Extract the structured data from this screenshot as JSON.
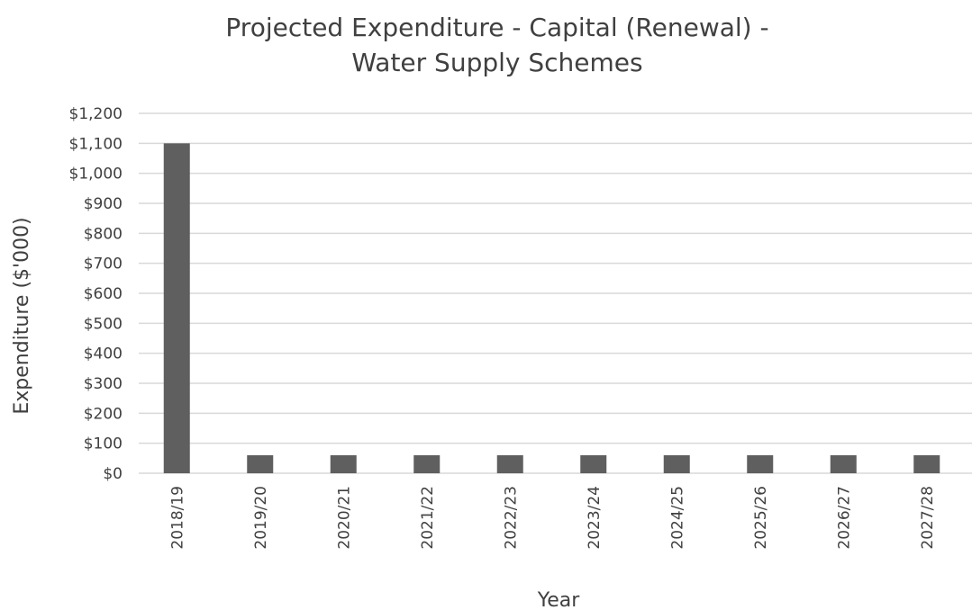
{
  "chart_data": {
    "type": "bar",
    "title_lines": [
      "Projected Expenditure - Capital (Renewal) -",
      "Water Supply Schemes"
    ],
    "xlabel": "Year",
    "ylabel": "Expenditure ($'000)",
    "categories": [
      "2018/19",
      "2019/20",
      "2020/21",
      "2021/22",
      "2022/23",
      "2023/24",
      "2024/25",
      "2025/26",
      "2026/27",
      "2027/28"
    ],
    "values": [
      1100,
      60,
      60,
      60,
      60,
      60,
      60,
      60,
      60,
      60
    ],
    "ylim": [
      0,
      1200
    ],
    "y_ticks": [
      0,
      100,
      200,
      300,
      400,
      500,
      600,
      700,
      800,
      900,
      1000,
      1100,
      1200
    ],
    "y_tick_labels": [
      "$0",
      "$100",
      "$200",
      "$300",
      "$400",
      "$500",
      "$600",
      "$700",
      "$800",
      "$900",
      "$1,000",
      "$1,100",
      "$1,200"
    ],
    "grid": true,
    "legend": "none",
    "colors": {
      "bar": "#5f5f5f",
      "grid": "#d9d9d9",
      "text": "#404040"
    }
  }
}
